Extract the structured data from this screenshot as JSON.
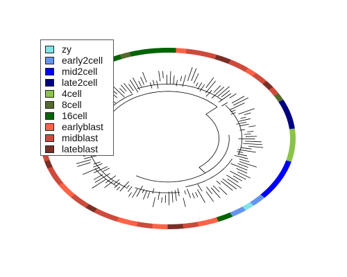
{
  "legend": {
    "items": [
      {
        "label": "zy",
        "color": "#7fe3e8"
      },
      {
        "label": "early2cell",
        "color": "#6495ed"
      },
      {
        "label": "mid2cell",
        "color": "#0000ff"
      },
      {
        "label": "late2cell",
        "color": "#000080"
      },
      {
        "label": "4cell",
        "color": "#8bc34a"
      },
      {
        "label": "8cell",
        "color": "#556b2f"
      },
      {
        "label": "16cell",
        "color": "#006400"
      },
      {
        "label": "earlyblast",
        "color": "#ff6347"
      },
      {
        "label": "midblast",
        "color": "#cd4b3c"
      },
      {
        "label": "lateblast",
        "color": "#7a2e26"
      }
    ]
  },
  "ring": {
    "segments": [
      {
        "stage": "8cell",
        "count": 1
      },
      {
        "stage": "16cell",
        "count": 22
      },
      {
        "stage": "8cell",
        "count": 2
      },
      {
        "stage": "16cell",
        "count": 9
      },
      {
        "stage": "earlyblast",
        "count": 2
      },
      {
        "stage": "midblast",
        "count": 6
      },
      {
        "stage": "lateblast",
        "count": 3
      },
      {
        "stage": "midblast",
        "count": 4
      },
      {
        "stage": "earlyblast",
        "count": 2
      },
      {
        "stage": "midblast",
        "count": 3
      },
      {
        "stage": "lateblast",
        "count": 2
      },
      {
        "stage": "midblast",
        "count": 2
      },
      {
        "stage": "8cell",
        "count": 2
      },
      {
        "stage": "late2cell",
        "count": 8
      },
      {
        "stage": "4cell",
        "count": 9
      },
      {
        "stage": "mid2cell",
        "count": 11
      },
      {
        "stage": "early2cell",
        "count": 3
      },
      {
        "stage": "zy",
        "count": 2
      },
      {
        "stage": "early2cell",
        "count": 3
      },
      {
        "stage": "16cell",
        "count": 3
      },
      {
        "stage": "earlyblast",
        "count": 4
      },
      {
        "stage": "midblast",
        "count": 3
      },
      {
        "stage": "lateblast",
        "count": 3
      },
      {
        "stage": "earlyblast",
        "count": 3
      },
      {
        "stage": "midblast",
        "count": 3
      },
      {
        "stage": "earlyblast",
        "count": 4
      },
      {
        "stage": "midblast",
        "count": 5
      },
      {
        "stage": "lateblast",
        "count": 2
      },
      {
        "stage": "midblast",
        "count": 4
      },
      {
        "stage": "earlyblast",
        "count": 4
      },
      {
        "stage": "midblast",
        "count": 5
      },
      {
        "stage": "lateblast",
        "count": 2
      },
      {
        "stage": "midblast",
        "count": 5
      },
      {
        "stage": "earlyblast",
        "count": 3
      },
      {
        "stage": "midblast",
        "count": 4
      }
    ]
  }
}
